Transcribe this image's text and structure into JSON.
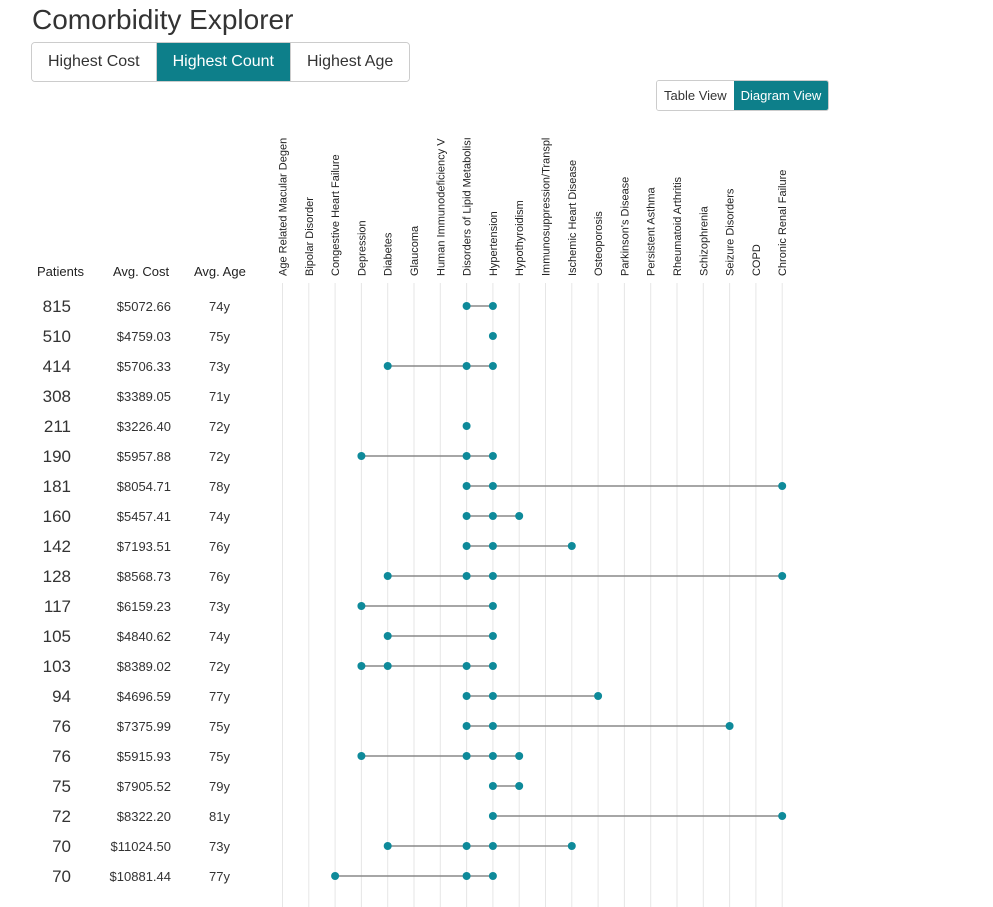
{
  "title": "Comorbidity Explorer",
  "sort_tabs": [
    {
      "label": "Highest Cost",
      "active": false
    },
    {
      "label": "Highest Count",
      "active": true
    },
    {
      "label": "Highest Age",
      "active": false
    }
  ],
  "view_toggle": [
    {
      "label": "Table View",
      "active": false
    },
    {
      "label": "Diagram View",
      "active": true
    }
  ],
  "columns": {
    "patients": "Patients",
    "avg_cost": "Avg. Cost",
    "avg_age": "Avg. Age"
  },
  "colors": {
    "accent": "#0d7f8a",
    "dot": "#0e8a9a",
    "connector": "#888888",
    "gridline": "#e6e6e6"
  },
  "diseases": [
    "Age Related Macular Degen",
    "Bipolar Disorder",
    "Congestive Heart Failure",
    "Depression",
    "Diabetes",
    "Glaucoma",
    "Human Immunodeficiency V",
    "Disorders of Lipid Metabolisı",
    "Hypertension",
    "Hypothyroidism",
    "Immunosuppression/Transpl",
    "Ischemic Heart Disease",
    "Osteoporosis",
    "Parkinson's Disease",
    "Persistent Asthma",
    "Rheumatoid Arthritis",
    "Schizophrenia",
    "Seizure Disorders",
    "COPD",
    "Chronic Renal Failure"
  ],
  "rows": [
    {
      "patients": "815",
      "cost": "$5072.66",
      "age": "74y",
      "diseases": [
        7,
        8
      ]
    },
    {
      "patients": "510",
      "cost": "$4759.03",
      "age": "75y",
      "diseases": [
        8
      ]
    },
    {
      "patients": "414",
      "cost": "$5706.33",
      "age": "73y",
      "diseases": [
        4,
        7,
        8
      ]
    },
    {
      "patients": "308",
      "cost": "$3389.05",
      "age": "71y",
      "diseases": []
    },
    {
      "patients": "211",
      "cost": "$3226.40",
      "age": "72y",
      "diseases": [
        7
      ]
    },
    {
      "patients": "190",
      "cost": "$5957.88",
      "age": "72y",
      "diseases": [
        3,
        7,
        8
      ]
    },
    {
      "patients": "181",
      "cost": "$8054.71",
      "age": "78y",
      "diseases": [
        7,
        8,
        19
      ]
    },
    {
      "patients": "160",
      "cost": "$5457.41",
      "age": "74y",
      "diseases": [
        7,
        8,
        9
      ]
    },
    {
      "patients": "142",
      "cost": "$7193.51",
      "age": "76y",
      "diseases": [
        7,
        8,
        11
      ]
    },
    {
      "patients": "128",
      "cost": "$8568.73",
      "age": "76y",
      "diseases": [
        4,
        7,
        8,
        19
      ]
    },
    {
      "patients": "117",
      "cost": "$6159.23",
      "age": "73y",
      "diseases": [
        3,
        8
      ]
    },
    {
      "patients": "105",
      "cost": "$4840.62",
      "age": "74y",
      "diseases": [
        4,
        8
      ]
    },
    {
      "patients": "103",
      "cost": "$8389.02",
      "age": "72y",
      "diseases": [
        3,
        4,
        7,
        8
      ]
    },
    {
      "patients": "94",
      "cost": "$4696.59",
      "age": "77y",
      "diseases": [
        7,
        8,
        12
      ]
    },
    {
      "patients": "76",
      "cost": "$7375.99",
      "age": "75y",
      "diseases": [
        7,
        8,
        17
      ]
    },
    {
      "patients": "76",
      "cost": "$5915.93",
      "age": "75y",
      "diseases": [
        3,
        7,
        8,
        9
      ]
    },
    {
      "patients": "75",
      "cost": "$7905.52",
      "age": "79y",
      "diseases": [
        8,
        9
      ]
    },
    {
      "patients": "72",
      "cost": "$8322.20",
      "age": "81y",
      "diseases": [
        8,
        19
      ]
    },
    {
      "patients": "70",
      "cost": "$11024.50",
      "age": "73y",
      "diseases": [
        4,
        7,
        8,
        11
      ]
    },
    {
      "patients": "70",
      "cost": "$10881.44",
      "age": "77y",
      "diseases": [
        2,
        7,
        8
      ]
    }
  ]
}
